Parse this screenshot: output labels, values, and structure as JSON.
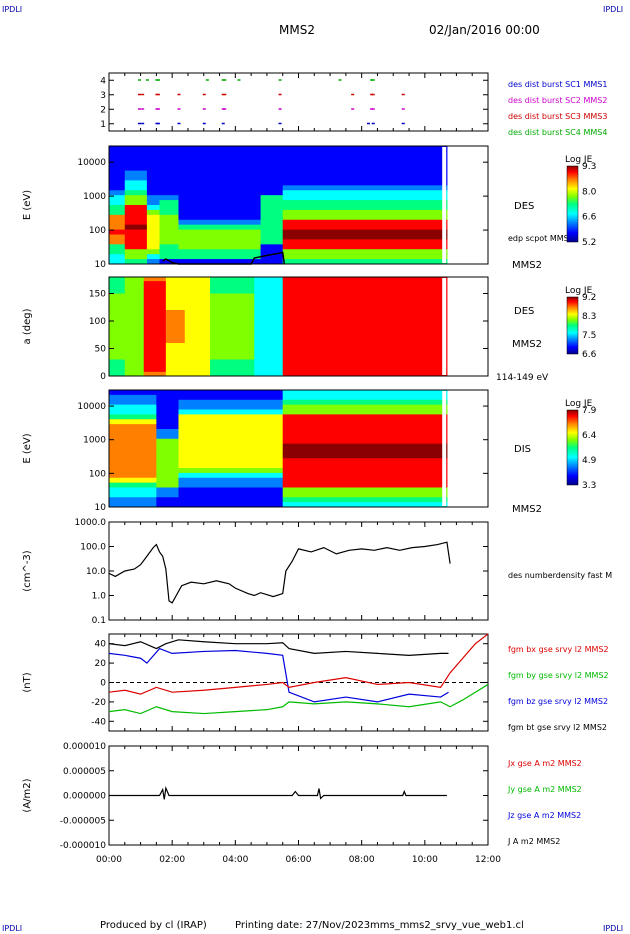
{
  "header": {
    "corner_left": "IPDLI",
    "corner_right": "IPDLI",
    "spacecraft": "MMS2",
    "date": "02/Jan/2016 00:00"
  },
  "footer": {
    "produced_by": "Produced by cl (IRAP)",
    "printing_date": "Printing date: 27/Nov/2023",
    "script": "mms_mms2_srvy_vue_web1.cl",
    "corner_left": "IPDLI",
    "corner_right": "IPDLI"
  },
  "colors": {
    "spectrogram_scale": [
      "#00008b",
      "#0000ff",
      "#0080ff",
      "#00ffff",
      "#00ff80",
      "#80ff00",
      "#ffff00",
      "#ff8000",
      "#ff0000",
      "#8b0000"
    ],
    "mms1": "#0000cc",
    "mms2": "#cc00cc",
    "mms3": "#cc0000",
    "mms4": "#00aa00"
  },
  "chart_data": [
    {
      "type": "scatter",
      "id": "burst",
      "ytick_labels": [
        "1",
        "2",
        "3",
        "4"
      ],
      "ylim": [
        0.5,
        4.5
      ],
      "legend": [
        {
          "label": "des dist burst SC1 MMS1",
          "color": "#0000cc"
        },
        {
          "label": "des dist burst SC2 MMS2",
          "color": "#cc00cc"
        },
        {
          "label": "des dist burst SC3 MMS3",
          "color": "#cc0000"
        },
        {
          "label": "des dist burst SC4 MMS4",
          "color": "#00aa00"
        }
      ],
      "series": [
        {
          "level": 4,
          "color": "#00aa00",
          "x": [
            0.95,
            1.2,
            1.5,
            1.55,
            3.1,
            3.6,
            3.65,
            4.1,
            5.4,
            7.3,
            8.3,
            8.35
          ]
        },
        {
          "level": 3,
          "color": "#cc0000",
          "x": [
            0.95,
            1.05,
            1.5,
            1.55,
            2.2,
            3.0,
            3.6,
            3.65,
            5.4,
            7.7,
            8.3,
            8.35,
            9.3
          ]
        },
        {
          "level": 2,
          "color": "#cc00cc",
          "x": [
            0.95,
            1.05,
            1.5,
            1.55,
            2.2,
            3.0,
            3.6,
            3.65,
            5.4,
            7.7,
            8.3,
            8.35,
            9.3
          ]
        },
        {
          "level": 1,
          "color": "#0000cc",
          "x": [
            0.95,
            1.05,
            1.5,
            1.55,
            2.2,
            3.0,
            3.6,
            5.4,
            8.2,
            8.35,
            9.3
          ]
        }
      ]
    },
    {
      "type": "heatmap",
      "id": "des_e",
      "ylabel": "E (eV)",
      "ytick_labels": [
        "10",
        "100",
        "1000",
        "10000"
      ],
      "yscale": "log",
      "ylim": [
        10,
        30000
      ],
      "label_inner": "DES",
      "label_sc": "MMS2",
      "overlay_label": "edp scpot MMS2",
      "colorbar": {
        "title": "Log JE",
        "ticks": [
          "9.3",
          "8.0",
          "6.6",
          "5.2"
        ]
      },
      "bands": [
        {
          "t0": 0.0,
          "t1": 0.5,
          "lo": 0.15,
          "hi": 0.42,
          "peak": 0.85
        },
        {
          "t0": 0.5,
          "t1": 1.2,
          "lo": 0.12,
          "hi": 0.5,
          "peak": 0.95
        },
        {
          "t0": 1.2,
          "t1": 1.6,
          "lo": 0.1,
          "hi": 0.45,
          "peak": 0.7
        },
        {
          "t0": 1.6,
          "t1": 2.2,
          "lo": 0.05,
          "hi": 0.55,
          "peak": 0.55
        },
        {
          "t0": 2.2,
          "t1": 4.8,
          "lo": 0.05,
          "hi": 0.35,
          "peak": 0.55
        },
        {
          "t0": 4.8,
          "t1": 5.5,
          "lo": 0.15,
          "hi": 0.6,
          "peak": 0.5
        },
        {
          "t0": 5.5,
          "t1": 10.7,
          "lo": 0.12,
          "hi": 0.38,
          "peak": 0.97
        }
      ],
      "scpot": [
        [
          1.7,
          12
        ],
        [
          1.8,
          14
        ],
        [
          2.0,
          11
        ],
        [
          2.2,
          10
        ],
        [
          4.5,
          10
        ],
        [
          4.6,
          15
        ],
        [
          5.0,
          18
        ],
        [
          5.3,
          20
        ],
        [
          5.5,
          22
        ],
        [
          5.55,
          10
        ]
      ]
    },
    {
      "type": "heatmap",
      "id": "des_pa",
      "ylabel": "a (deg)",
      "ytick_labels": [
        "0",
        "50",
        "100",
        "150"
      ],
      "ylim": [
        0,
        180
      ],
      "label_inner": "DES",
      "label_sc": "MMS2",
      "energy_label": "114-149 eV",
      "colorbar": {
        "title": "Log JE",
        "ticks": [
          "9.2",
          "8.3",
          "7.5",
          "6.6"
        ]
      },
      "segments": [
        {
          "t0": 0.0,
          "t1": 0.5,
          "v": 0.55
        },
        {
          "t0": 0.5,
          "t1": 1.1,
          "v": 0.6
        },
        {
          "t0": 1.1,
          "t1": 1.8,
          "v": 0.9
        },
        {
          "t0": 1.8,
          "t1": 2.4,
          "v": 0.75
        },
        {
          "t0": 2.4,
          "t1": 3.2,
          "v": 0.7
        },
        {
          "t0": 3.2,
          "t1": 4.6,
          "v": 0.55
        },
        {
          "t0": 4.6,
          "t1": 5.5,
          "v": 0.35
        },
        {
          "t0": 5.5,
          "t1": 10.7,
          "v": 0.92
        }
      ]
    },
    {
      "type": "heatmap",
      "id": "dis_e",
      "ylabel": "E (eV)",
      "ytick_labels": [
        "10",
        "100",
        "1000",
        "10000"
      ],
      "yscale": "log",
      "ylim": [
        10,
        30000
      ],
      "label_inner": "DIS",
      "label_sc": "MMS2",
      "colorbar": {
        "title": "Log JE",
        "ticks": [
          "7.9",
          "6.4",
          "4.9",
          "3.3"
        ]
      },
      "bands": [
        {
          "t0": 0.0,
          "t1": 1.5,
          "lo": 0.2,
          "hi": 0.75,
          "peak": 0.8
        },
        {
          "t0": 1.5,
          "t1": 2.2,
          "lo": 0.15,
          "hi": 0.6,
          "peak": 0.6
        },
        {
          "t0": 2.2,
          "t1": 5.5,
          "lo": 0.3,
          "hi": 0.8,
          "peak": 0.7
        },
        {
          "t0": 5.5,
          "t1": 10.7,
          "lo": 0.18,
          "hi": 0.78,
          "peak": 0.97
        }
      ]
    },
    {
      "type": "line",
      "id": "density",
      "ylabel": "(cm^-3)",
      "yscale": "log",
      "ytick_labels": [
        "0.1",
        "1.0",
        "10.0",
        "100.0",
        "1000.0"
      ],
      "ylim": [
        0.1,
        1000
      ],
      "legend": [
        {
          "label": "des numberdensity fast M",
          "color": "#000000"
        }
      ],
      "series": [
        {
          "name": "des numberdensity fast M",
          "color": "#000000",
          "x": [
            0,
            0.2,
            0.5,
            0.8,
            1.0,
            1.2,
            1.4,
            1.5,
            1.6,
            1.7,
            1.8,
            1.9,
            2.0,
            2.3,
            2.6,
            3.0,
            3.4,
            3.8,
            4.0,
            4.4,
            4.6,
            4.8,
            5.2,
            5.5,
            5.6,
            5.8,
            6.0,
            6.4,
            6.8,
            7.2,
            7.6,
            8.0,
            8.4,
            8.8,
            9.2,
            9.6,
            10.0,
            10.4,
            10.7,
            10.8
          ],
          "y": [
            8,
            6,
            10,
            12,
            18,
            40,
            90,
            120,
            60,
            40,
            12,
            0.6,
            0.5,
            2.5,
            3.5,
            3.0,
            4.0,
            3.0,
            2.0,
            1.2,
            1.0,
            1.3,
            0.9,
            1.2,
            10,
            25,
            80,
            60,
            90,
            50,
            70,
            80,
            70,
            90,
            70,
            90,
            100,
            120,
            150,
            20
          ]
        }
      ]
    },
    {
      "type": "line",
      "id": "bfield",
      "ylabel": "(nT)",
      "ytick_labels": [
        "-40",
        "-20",
        "0",
        "20",
        "40"
      ],
      "ylim": [
        -50,
        50
      ],
      "legend": [
        {
          "label": "fgm bx gse srvy l2 MMS2",
          "color": "#dd0000"
        },
        {
          "label": "fgm by gse srvy l2 MMS2",
          "color": "#00bb00"
        },
        {
          "label": "fgm bz gse srvy l2 MMS2",
          "color": "#0000dd"
        },
        {
          "label": "fgm bt gse srvy l2 MMS2",
          "color": "#000000"
        }
      ],
      "series": [
        {
          "name": "fgm bt gse srvy l2 MMS2",
          "color": "#000000",
          "x": [
            0,
            0.5,
            1.0,
            1.5,
            1.8,
            2.2,
            3.0,
            4.0,
            5.0,
            5.5,
            5.7,
            6.5,
            7.5,
            8.5,
            9.5,
            10.5,
            10.75
          ],
          "y": [
            40,
            38,
            42,
            35,
            40,
            44,
            42,
            40,
            40,
            41,
            35,
            30,
            32,
            30,
            28,
            30,
            30
          ]
        },
        {
          "name": "fgm bz gse srvy l2 MMS2",
          "color": "#0000dd",
          "x": [
            0,
            0.5,
            1.0,
            1.2,
            1.6,
            2.0,
            3.0,
            4.0,
            5.0,
            5.5,
            5.7,
            6.5,
            7.5,
            8.5,
            9.5,
            10.5,
            10.75
          ],
          "y": [
            30,
            28,
            25,
            20,
            35,
            30,
            32,
            33,
            30,
            28,
            -10,
            -20,
            -15,
            -20,
            -12,
            -15,
            -10
          ]
        },
        {
          "name": "fgm bx gse srvy l2 MMS2",
          "color": "#dd0000",
          "x": [
            0,
            0.5,
            1.0,
            1.5,
            2.0,
            3.0,
            4.0,
            5.0,
            5.5,
            5.7,
            6.5,
            7.5,
            8.5,
            9.5,
            10.5,
            10.8,
            11.2,
            11.6,
            12.0
          ],
          "y": [
            -10,
            -8,
            -12,
            -5,
            -10,
            -8,
            -5,
            -2,
            0,
            -5,
            0,
            5,
            -2,
            0,
            -5,
            10,
            25,
            40,
            50
          ]
        },
        {
          "name": "fgm by gse srvy l2 MMS2",
          "color": "#00bb00",
          "x": [
            0,
            0.5,
            1.0,
            1.5,
            2.0,
            3.0,
            4.0,
            5.0,
            5.5,
            5.7,
            6.5,
            7.5,
            8.5,
            9.5,
            10.5,
            10.8,
            11.2,
            11.6,
            12.0
          ],
          "y": [
            -30,
            -28,
            -32,
            -25,
            -30,
            -32,
            -30,
            -28,
            -25,
            -20,
            -22,
            -20,
            -22,
            -25,
            -20,
            -25,
            -18,
            -10,
            -2
          ]
        }
      ],
      "zero_line": true
    },
    {
      "type": "line",
      "id": "current",
      "ylabel": "(A/m2)",
      "ytick_labels": [
        "-0.000010",
        "-0.000005",
        "0.000000",
        "0.000005",
        "0.000010"
      ],
      "ylim": [
        -1e-05,
        1e-05
      ],
      "legend": [
        {
          "label": "Jx gse A m2 MMS2",
          "color": "#dd0000"
        },
        {
          "label": "Jy gse A m2 MMS2",
          "color": "#00bb00"
        },
        {
          "label": "Jz gse A m2 MMS2",
          "color": "#0000dd"
        },
        {
          "label": "J A m2 MMS2",
          "color": "#000000"
        }
      ],
      "series": [
        {
          "name": "J A m2 MMS2",
          "color": "#000000",
          "x": [
            0,
            1.6,
            1.7,
            1.75,
            1.8,
            1.9,
            5.8,
            5.9,
            6.0,
            6.6,
            6.65,
            6.7,
            6.8,
            9.3,
            9.35,
            9.4,
            10.7
          ],
          "y": [
            0,
            0,
            1.2e-06,
            -8e-07,
            1.5e-06,
            0,
            0,
            8e-07,
            0,
            0,
            1.4e-06,
            -6e-07,
            0,
            0,
            8e-07,
            0,
            0
          ]
        }
      ]
    }
  ],
  "time_axis": {
    "tick_labels": [
      "00:00",
      "02:00",
      "04:00",
      "06:00",
      "08:00",
      "10:00",
      "12:00"
    ],
    "xlim": [
      0,
      12
    ]
  }
}
